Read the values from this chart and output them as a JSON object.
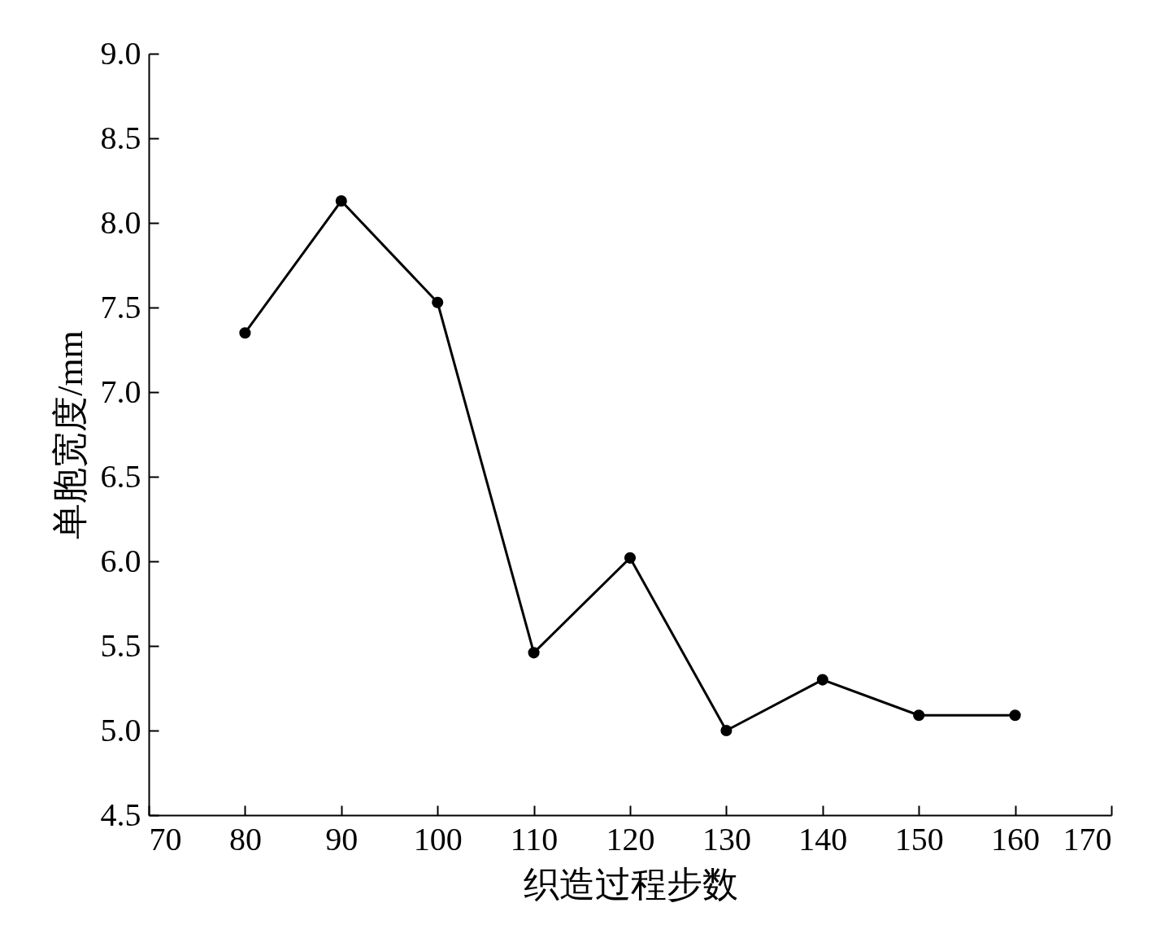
{
  "chart_data": {
    "type": "line",
    "xlabel": "织造过程步数",
    "ylabel": "单胞宽度/mm",
    "x": [
      80,
      90,
      100,
      110,
      120,
      130,
      140,
      150,
      160
    ],
    "series": [
      {
        "color": "#000000",
        "values": [
          7.35,
          8.13,
          7.53,
          5.46,
          6.02,
          5.0,
          5.3,
          5.09,
          5.09
        ]
      }
    ],
    "xlim": [
      70,
      170
    ],
    "xticks": [
      70,
      80,
      90,
      100,
      110,
      120,
      130,
      140,
      150,
      160,
      170
    ],
    "ylim": [
      4.5,
      9.0
    ],
    "yticks": [
      {
        "value": 4.5,
        "label": "4.5"
      },
      {
        "value": 5,
        "label": "5.0"
      },
      {
        "value": 5.5,
        "label": "5.5"
      },
      {
        "value": 6,
        "label": "6.0"
      },
      {
        "value": 6.5,
        "label": "6.5"
      },
      {
        "value": 7,
        "label": "7.0"
      },
      {
        "value": 7.5,
        "label": "7.5"
      },
      {
        "value": 8,
        "label": "8.0"
      },
      {
        "value": 8.5,
        "label": "8.5"
      },
      {
        "value": 9,
        "label": "9.0"
      }
    ],
    "marker": "circle",
    "line_style": "solid",
    "grid": false,
    "legend": false
  }
}
